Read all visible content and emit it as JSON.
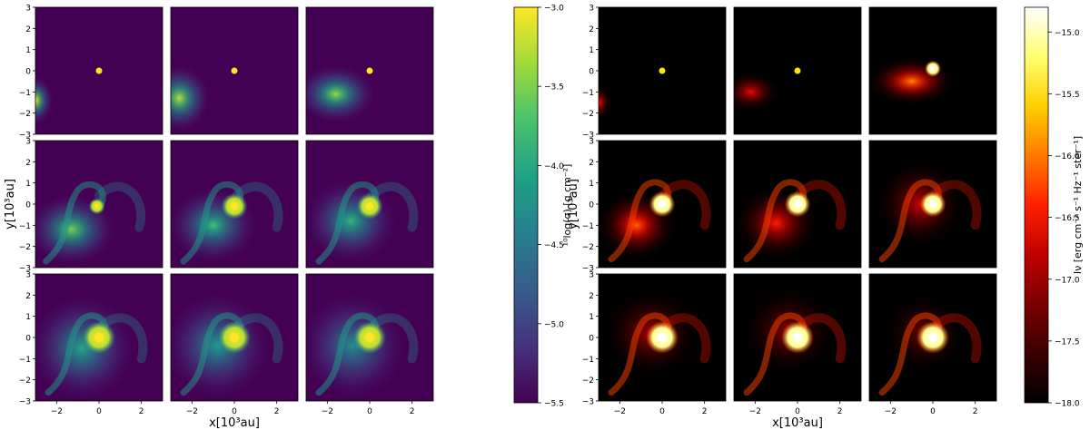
{
  "chart_data": [
    {
      "type": "heatmap",
      "panel_layout": "3x3 time-sequence grid of snapshots",
      "colormap": "viridis",
      "xlabel": "x[10³au]",
      "ylabel": "y[10³au]",
      "xlim": [
        -3,
        3
      ],
      "ylim": [
        -3,
        3
      ],
      "x_ticks": [
        "−2",
        "0",
        "2"
      ],
      "y_ticks": [
        "3",
        "2",
        "1",
        "0",
        "−1",
        "−2",
        "−3"
      ],
      "colorbar": {
        "label": "¹⁰log(σ) [g cm⁻²]",
        "range": [
          -5.5,
          -3.0
        ],
        "ticks": [
          "−3.0",
          "−3.5",
          "−4.0",
          "−4.5",
          "−5.0",
          "−5.5"
        ],
        "tick_values": [
          -3.0,
          -3.5,
          -4.0,
          -4.5,
          -5.0,
          -5.5
        ]
      },
      "panels": [
        {
          "blobs": [
            {
              "x": -3.0,
              "y": -1.4,
              "rx": 0.8,
              "ry": 1.1,
              "v": 1.0
            }
          ],
          "star": {
            "x": 0,
            "y": 0,
            "size": "point"
          },
          "spiral": false
        },
        {
          "blobs": [
            {
              "x": -2.6,
              "y": -1.3,
              "rx": 1.4,
              "ry": 1.5,
              "v": 0.9
            }
          ],
          "star": {
            "x": 0,
            "y": 0,
            "size": "point"
          },
          "spiral": false
        },
        {
          "blobs": [
            {
              "x": -1.6,
              "y": -1.1,
              "rx": 1.8,
              "ry": 1.3,
              "v": 0.85
            }
          ],
          "star": {
            "x": 0,
            "y": 0,
            "size": "point"
          },
          "spiral": false
        },
        {
          "blobs": [
            {
              "x": -1.3,
              "y": -1.2,
              "rx": 2.0,
              "ry": 1.6,
              "v": 0.8
            }
          ],
          "star": {
            "x": -0.1,
            "y": -0.1,
            "size": "small"
          },
          "spiral": true
        },
        {
          "blobs": [
            {
              "x": -1.0,
              "y": -1.0,
              "rx": 2.0,
              "ry": 1.7,
              "v": 0.7
            }
          ],
          "star": {
            "x": 0,
            "y": -0.1,
            "size": "medium"
          },
          "spiral": true
        },
        {
          "blobs": [
            {
              "x": -0.9,
              "y": -0.8,
              "rx": 2.1,
              "ry": 1.9,
              "v": 0.65
            }
          ],
          "star": {
            "x": 0,
            "y": -0.1,
            "size": "medium"
          },
          "spiral": true
        },
        {
          "blobs": [
            {
              "x": -0.8,
              "y": -0.5,
              "rx": 2.4,
              "ry": 2.4,
              "v": 0.6
            }
          ],
          "star": {
            "x": 0,
            "y": 0,
            "size": "large"
          },
          "spiral": true
        },
        {
          "blobs": [
            {
              "x": -0.8,
              "y": -0.4,
              "rx": 2.4,
              "ry": 2.4,
              "v": 0.55
            }
          ],
          "star": {
            "x": 0,
            "y": 0,
            "size": "large"
          },
          "spiral": true
        },
        {
          "blobs": [
            {
              "x": -0.8,
              "y": -0.4,
              "rx": 2.4,
              "ry": 2.4,
              "v": 0.5
            }
          ],
          "star": {
            "x": 0,
            "y": 0,
            "size": "large"
          },
          "spiral": true
        }
      ]
    },
    {
      "type": "heatmap",
      "panel_layout": "3x3 time-sequence grid of snapshots",
      "colormap": "hot",
      "xlabel": "x[10³au]",
      "ylabel": "y[10³au]",
      "xlim": [
        -3,
        3
      ],
      "ylim": [
        -3,
        3
      ],
      "x_ticks": [
        "−2",
        "0",
        "2"
      ],
      "y_ticks": [
        "3",
        "2",
        "1",
        "0",
        "−1",
        "−2",
        "−3"
      ],
      "colorbar": {
        "label": "Iν [erg cm⁻² s⁻¹ Hz⁻¹ ster⁻¹]",
        "range": [
          -18.0,
          -14.8
        ],
        "ticks": [
          "−15.0",
          "−15.5",
          "−16.0",
          "−16.5",
          "−17.0",
          "−17.5",
          "−18.0"
        ],
        "tick_values": [
          -15.0,
          -15.5,
          -16.0,
          -16.5,
          -17.0,
          -17.5,
          -18.0
        ]
      },
      "panels": [
        {
          "blobs": [
            {
              "x": -3.0,
              "y": -1.5,
              "rx": 0.6,
              "ry": 0.8,
              "v": 0.5
            }
          ],
          "star": {
            "x": 0,
            "y": 0,
            "size": "point"
          },
          "spiral": false
        },
        {
          "blobs": [
            {
              "x": -2.2,
              "y": -1.0,
              "rx": 1.3,
              "ry": 0.9,
              "v": 0.45
            }
          ],
          "star": {
            "x": 0,
            "y": 0,
            "size": "point"
          },
          "spiral": false
        },
        {
          "blobs": [
            {
              "x": -1.0,
              "y": -0.5,
              "rx": 2.0,
              "ry": 1.1,
              "v": 0.65
            }
          ],
          "star": {
            "x": 0,
            "y": 0.1,
            "size": "small"
          },
          "spiral": false
        },
        {
          "blobs": [
            {
              "x": -1.2,
              "y": -1.0,
              "rx": 1.8,
              "ry": 1.6,
              "v": 0.6
            }
          ],
          "star": {
            "x": 0,
            "y": 0,
            "size": "medium"
          },
          "spiral": true
        },
        {
          "blobs": [
            {
              "x": -1.0,
              "y": -0.9,
              "rx": 1.9,
              "ry": 1.7,
              "v": 0.5
            }
          ],
          "star": {
            "x": 0,
            "y": 0,
            "size": "medium"
          },
          "spiral": true
        },
        {
          "blobs": [
            {
              "x": -0.6,
              "y": 0.0,
              "rx": 2.0,
              "ry": 2.0,
              "v": 0.4
            }
          ],
          "star": {
            "x": 0,
            "y": 0,
            "size": "medium"
          },
          "spiral": true
        },
        {
          "blobs": [
            {
              "x": -0.5,
              "y": 0.2,
              "rx": 2.2,
              "ry": 2.0,
              "v": 0.35
            }
          ],
          "star": {
            "x": 0,
            "y": 0,
            "size": "large"
          },
          "spiral": true
        },
        {
          "blobs": [
            {
              "x": -0.4,
              "y": 0.3,
              "rx": 2.1,
              "ry": 2.0,
              "v": 0.3
            }
          ],
          "star": {
            "x": 0,
            "y": 0,
            "size": "large"
          },
          "spiral": true
        },
        {
          "blobs": [
            {
              "x": -0.4,
              "y": 0.2,
              "rx": 1.9,
              "ry": 1.8,
              "v": 0.25
            }
          ],
          "star": {
            "x": 0,
            "y": 0,
            "size": "large"
          },
          "spiral": true
        }
      ]
    }
  ]
}
